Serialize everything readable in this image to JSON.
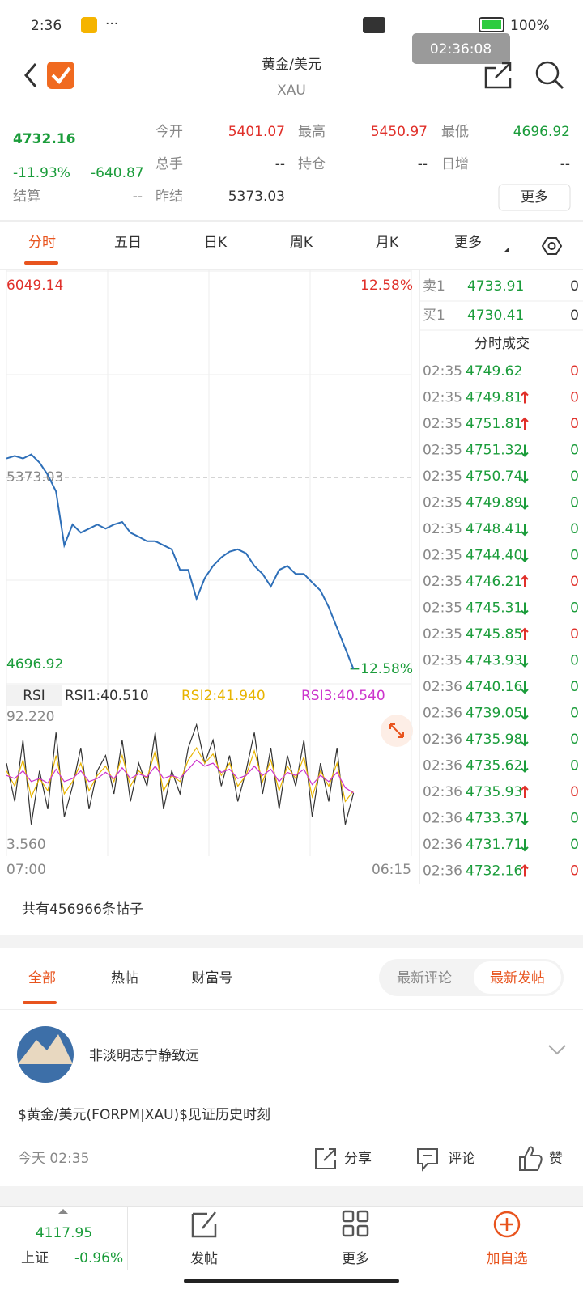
{
  "status": {
    "time": "2:36",
    "battery": "100%",
    "overlay_time": "02:36:08"
  },
  "header": {
    "title": "黄金/美元",
    "subtitle": "XAU"
  },
  "quote": {
    "price": "4732.16",
    "change_pct": "-11.93%",
    "change": "-640.87",
    "fields": [
      {
        "label": "今开",
        "value": "5401.07"
      },
      {
        "label": "最高",
        "value": "5450.97"
      },
      {
        "label": "最低",
        "value": "4696.92"
      },
      {
        "label": "总手",
        "value": "--"
      },
      {
        "label": "持仓",
        "value": "--"
      },
      {
        "label": "日增",
        "value": "--"
      },
      {
        "label": "结算",
        "value": "--"
      },
      {
        "label": "昨结",
        "value": "5373.03"
      }
    ],
    "more": "更多"
  },
  "tabs": [
    "分时",
    "五日",
    "日K",
    "周K",
    "月K",
    "更多"
  ],
  "chart_data": [
    {
      "type": "line",
      "ylim": [
        4696.92,
        6049.14
      ],
      "yticks": [
        4696.92,
        5373.03,
        6049.14
      ],
      "y2lim": [
        -12.58,
        12.58
      ],
      "y2ticks": [
        {
          "value": 12.58,
          "label": "12.58%"
        },
        {
          "value": -12.58,
          "label": "−12.58%"
        }
      ],
      "time_labels": [
        "07:00",
        "06:15"
      ],
      "grid": true,
      "series": [
        {
          "color": "#2e6fb8",
          "values": [
            5438,
            5447,
            5438,
            5452,
            5424,
            5382,
            5325,
            5140,
            5211,
            5183,
            5197,
            5211,
            5197,
            5211,
            5220,
            5183,
            5169,
            5154,
            5154,
            5140,
            5126,
            5055,
            5055,
            4956,
            5027,
            5069,
            5098,
            5118,
            5126,
            5112,
            5069,
            5041,
            4998,
            5055,
            5069,
            5041,
            5041,
            5012,
            4984,
            4927,
            4856,
            4785,
            4714,
            null,
            null,
            null,
            null,
            null,
            null,
            null
          ]
        }
      ]
    },
    {
      "type": "line",
      "title": "RSI",
      "ylim": [
        3.56,
        92.22
      ],
      "yticks": [
        {
          "value": 92.22,
          "label": "92.220"
        },
        {
          "value": 3.56,
          "label": "3.560"
        }
      ],
      "series": [
        {
          "name": "RSI1:40.510",
          "color": "#333333",
          "values": [
            60,
            35,
            75,
            20,
            55,
            30,
            80,
            25,
            45,
            70,
            30,
            55,
            65,
            40,
            75,
            35,
            60,
            45,
            80,
            30,
            55,
            40,
            70,
            85,
            60,
            75,
            45,
            65,
            35,
            55,
            80,
            40,
            70,
            30,
            65,
            45,
            75,
            25,
            60,
            35,
            70,
            20,
            40.51,
            null,
            null,
            null,
            null,
            null,
            null,
            null
          ]
        },
        {
          "name": "RSI2:41.940",
          "color": "#e8b400",
          "values": [
            55,
            45,
            62,
            38,
            50,
            42,
            65,
            40,
            48,
            60,
            42,
            52,
            58,
            48,
            65,
            45,
            55,
            50,
            68,
            42,
            52,
            48,
            62,
            70,
            60,
            66,
            52,
            60,
            45,
            52,
            68,
            48,
            62,
            42,
            58,
            50,
            64,
            38,
            55,
            45,
            60,
            35,
            41.94,
            null,
            null,
            null,
            null,
            null,
            null,
            null
          ]
        },
        {
          "name": "RSI3:40.540",
          "color": "#cc33cc",
          "values": [
            52,
            50,
            55,
            48,
            50,
            47,
            56,
            48,
            50,
            55,
            48,
            50,
            54,
            50,
            57,
            50,
            53,
            51,
            58,
            50,
            52,
            50,
            56,
            62,
            58,
            60,
            54,
            56,
            50,
            52,
            58,
            52,
            56,
            48,
            54,
            52,
            56,
            46,
            52,
            48,
            54,
            44,
            40.54,
            null,
            null,
            null,
            null,
            null,
            null,
            null
          ]
        }
      ]
    }
  ],
  "book": {
    "ask": {
      "label": "卖1",
      "price": "4733.91",
      "volume": "0"
    },
    "bid": {
      "label": "买1",
      "price": "4730.41",
      "volume": "0"
    },
    "title": "分时成交",
    "trades": [
      [
        "02:35",
        "4749.62",
        "flat",
        "0"
      ],
      [
        "02:35",
        "4749.81",
        "up",
        "0"
      ],
      [
        "02:35",
        "4751.81",
        "up",
        "0"
      ],
      [
        "02:35",
        "4751.32",
        "down",
        "0"
      ],
      [
        "02:35",
        "4750.74",
        "down",
        "0"
      ],
      [
        "02:35",
        "4749.89",
        "down",
        "0"
      ],
      [
        "02:35",
        "4748.41",
        "down",
        "0"
      ],
      [
        "02:35",
        "4744.40",
        "down",
        "0"
      ],
      [
        "02:35",
        "4746.21",
        "up",
        "0"
      ],
      [
        "02:35",
        "4745.31",
        "down",
        "0"
      ],
      [
        "02:35",
        "4745.85",
        "up",
        "0"
      ],
      [
        "02:35",
        "4743.93",
        "down",
        "0"
      ],
      [
        "02:36",
        "4740.16",
        "down",
        "0"
      ],
      [
        "02:36",
        "4739.05",
        "down",
        "0"
      ],
      [
        "02:36",
        "4735.98",
        "down",
        "0"
      ],
      [
        "02:36",
        "4735.62",
        "down",
        "0"
      ],
      [
        "02:36",
        "4735.93",
        "up",
        "0"
      ],
      [
        "02:36",
        "4733.37",
        "down",
        "0"
      ],
      [
        "02:36",
        "4731.71",
        "down",
        "0"
      ],
      [
        "02:36",
        "4732.16",
        "up",
        "0"
      ]
    ]
  },
  "posts": {
    "count": "共有456966条帖子",
    "tabs": [
      "全部",
      "热帖",
      "财富号"
    ],
    "sort": [
      "最新评论",
      "最新发帖"
    ],
    "items": [
      {
        "author": "非淡明志宁静致远",
        "content": "$黄金/美元(FORPM|XAU)$见证历史时刻",
        "time": "今天 02:35",
        "actions": [
          "分享",
          "评论",
          "赞"
        ]
      }
    ]
  },
  "nav": {
    "index_value": "4117.95",
    "index_name": "上证",
    "index_change": "-0.96%",
    "items": [
      "发帖",
      "更多",
      "加自选"
    ]
  }
}
